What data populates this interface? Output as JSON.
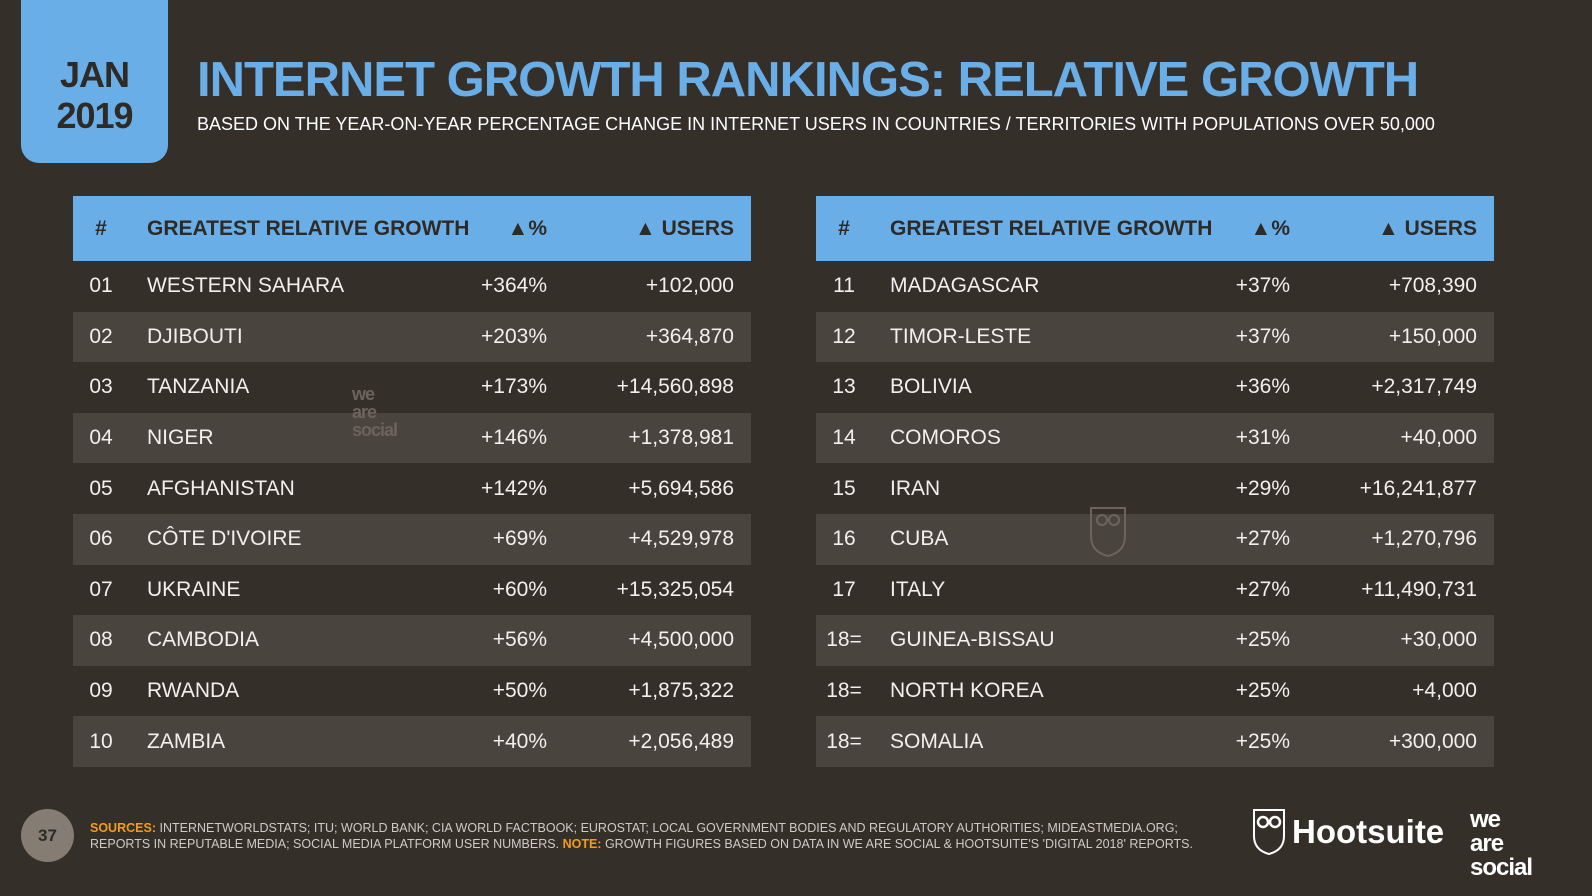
{
  "date": {
    "month": "JAN",
    "year": "2019"
  },
  "title": "INTERNET GROWTH RANKINGS: RELATIVE GROWTH",
  "subtitle": "BASED ON THE YEAR-ON-YEAR PERCENTAGE CHANGE IN INTERNET USERS IN COUNTRIES / TERRITORIES WITH POPULATIONS OVER 50,000",
  "headers": {
    "num": "#",
    "name": "GREATEST RELATIVE GROWTH",
    "pct": "▲%",
    "users": "▲ USERS"
  },
  "left_rows": [
    {
      "num": "01",
      "name": "WESTERN SAHARA",
      "pct": "+364%",
      "users": "+102,000"
    },
    {
      "num": "02",
      "name": "DJIBOUTI",
      "pct": "+203%",
      "users": "+364,870"
    },
    {
      "num": "03",
      "name": "TANZANIA",
      "pct": "+173%",
      "users": "+14,560,898"
    },
    {
      "num": "04",
      "name": "NIGER",
      "pct": "+146%",
      "users": "+1,378,981"
    },
    {
      "num": "05",
      "name": "AFGHANISTAN",
      "pct": "+142%",
      "users": "+5,694,586"
    },
    {
      "num": "06",
      "name": "CÔTE D'IVOIRE",
      "pct": "+69%",
      "users": "+4,529,978"
    },
    {
      "num": "07",
      "name": "UKRAINE",
      "pct": "+60%",
      "users": "+15,325,054"
    },
    {
      "num": "08",
      "name": "CAMBODIA",
      "pct": "+56%",
      "users": "+4,500,000"
    },
    {
      "num": "09",
      "name": "RWANDA",
      "pct": "+50%",
      "users": "+1,875,322"
    },
    {
      "num": "10",
      "name": "ZAMBIA",
      "pct": "+40%",
      "users": "+2,056,489"
    }
  ],
  "right_rows": [
    {
      "num": "11",
      "name": "MADAGASCAR",
      "pct": "+37%",
      "users": "+708,390"
    },
    {
      "num": "12",
      "name": "TIMOR-LESTE",
      "pct": "+37%",
      "users": "+150,000"
    },
    {
      "num": "13",
      "name": "BOLIVIA",
      "pct": "+36%",
      "users": "+2,317,749"
    },
    {
      "num": "14",
      "name": "COMOROS",
      "pct": "+31%",
      "users": "+40,000"
    },
    {
      "num": "15",
      "name": "IRAN",
      "pct": "+29%",
      "users": "+16,241,877"
    },
    {
      "num": "16",
      "name": "CUBA",
      "pct": "+27%",
      "users": "+1,270,796"
    },
    {
      "num": "17",
      "name": "ITALY",
      "pct": "+27%",
      "users": "+11,490,731"
    },
    {
      "num": "18=",
      "name": "GUINEA-BISSAU",
      "pct": "+25%",
      "users": "+30,000"
    },
    {
      "num": "18=",
      "name": "NORTH KOREA",
      "pct": "+25%",
      "users": "+4,000"
    },
    {
      "num": "18=",
      "name": "SOMALIA",
      "pct": "+25%",
      "users": "+300,000"
    }
  ],
  "footer": {
    "sources_label": "SOURCES:",
    "sources": "INTERNETWORLDSTATS; ITU; WORLD BANK; CIA WORLD FACTBOOK; EUROSTAT; LOCAL GOVERNMENT BODIES AND REGULATORY AUTHORITIES; MIDEASTMEDIA.ORG; REPORTS IN REPUTABLE MEDIA; SOCIAL MEDIA PLATFORM USER NUMBERS.",
    "note_label": "NOTE:",
    "note": "GROWTH FIGURES BASED ON DATA IN WE ARE SOCIAL & HOOTSUITE'S 'DIGITAL 2018' REPORTS."
  },
  "page_number": "37",
  "logos": {
    "hootsuite": "Hootsuite",
    "we_are_social": [
      "we",
      "are",
      "social"
    ]
  },
  "colors": {
    "accent": "#6aaee8",
    "background": "#352f2a",
    "stripe": "#4a443e",
    "note": "#f39c1a"
  }
}
